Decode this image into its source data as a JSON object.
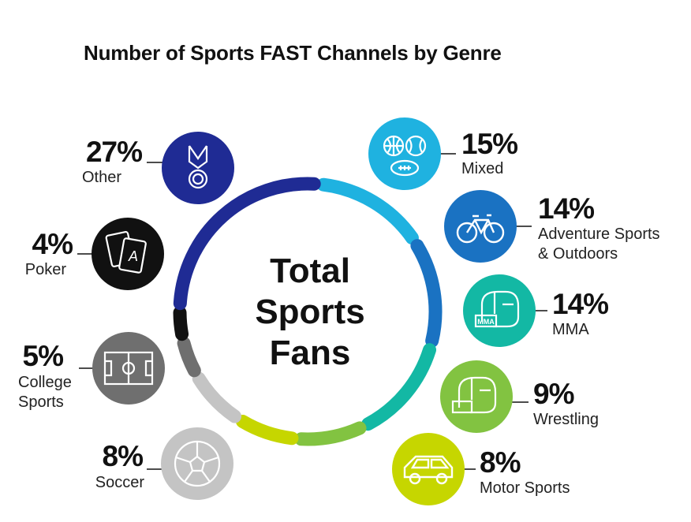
{
  "title": "Number of Sports FAST Channels by Genre",
  "center_label": [
    "Total",
    "Sports",
    "Fans"
  ],
  "chart_data": {
    "type": "donut",
    "title": "Number of Sports FAST Channels by Genre",
    "center_label": "Total Sports Fans",
    "unit": "%",
    "slices": [
      {
        "label": "Mixed",
        "value": 15,
        "color": "#1fb2e0",
        "icon": "sports-balls-icon"
      },
      {
        "label": "Adventure Sports & Outdoors",
        "value": 14,
        "color": "#1a72c2",
        "icon": "bicycle-icon"
      },
      {
        "label": "MMA",
        "value": 14,
        "color": "#13b8a4",
        "icon": "mma-glove-icon"
      },
      {
        "label": "Wrestling",
        "value": 9,
        "color": "#82c341",
        "icon": "wrestling-glove-icon"
      },
      {
        "label": "Motor Sports",
        "value": 8,
        "color": "#c6d600",
        "icon": "car-icon"
      },
      {
        "label": "Soccer",
        "value": 8,
        "color": "#c4c4c4",
        "icon": "soccer-ball-icon"
      },
      {
        "label": "College Sports",
        "value": 5,
        "color": "#6f6f6f",
        "icon": "sports-field-icon"
      },
      {
        "label": "Poker",
        "value": 4,
        "color": "#111111",
        "icon": "playing-cards-icon"
      },
      {
        "label": "Other",
        "value": 27,
        "color": "#1f2b94",
        "icon": "medal-icon"
      }
    ]
  },
  "labels": {
    "mixed": {
      "pct": "15%",
      "name": [
        "Mixed"
      ]
    },
    "adventure": {
      "pct": "14%",
      "name": [
        "Adventure Sports",
        "& Outdoors"
      ]
    },
    "mma": {
      "pct": "14%",
      "name": [
        "MMA"
      ]
    },
    "wrestling": {
      "pct": "9%",
      "name": [
        "Wrestling"
      ]
    },
    "motor": {
      "pct": "8%",
      "name": [
        "Motor Sports"
      ]
    },
    "soccer": {
      "pct": "8%",
      "name": [
        "Soccer"
      ]
    },
    "college": {
      "pct": "5%",
      "name": [
        "College",
        "Sports"
      ]
    },
    "poker": {
      "pct": "4%",
      "name": [
        "Poker"
      ]
    },
    "other": {
      "pct": "27%",
      "name": [
        "Other"
      ]
    }
  },
  "icon_text": {
    "mma": "MMA",
    "poker_card": "A"
  }
}
